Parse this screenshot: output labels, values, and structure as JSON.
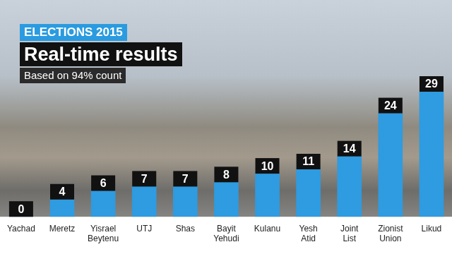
{
  "chart_data": {
    "type": "bar",
    "title": "ELECTIONS 2015",
    "subtitle": "Real-time results",
    "annotations": [
      "Based on 94% count"
    ],
    "categories": [
      "Yachad",
      "Meretz",
      "Yisrael Beytenu",
      "UTJ",
      "Shas",
      "Bayit Yehudi",
      "Kulanu",
      "Yesh Atid",
      "Joint List",
      "Zionist Union",
      "Likud"
    ],
    "values": [
      0,
      4,
      6,
      7,
      7,
      8,
      10,
      11,
      14,
      24,
      29
    ],
    "color": "#2f9be0",
    "ylim": [
      0,
      29
    ],
    "grid": false,
    "data_labels": true,
    "tick_labels": "x"
  }
}
